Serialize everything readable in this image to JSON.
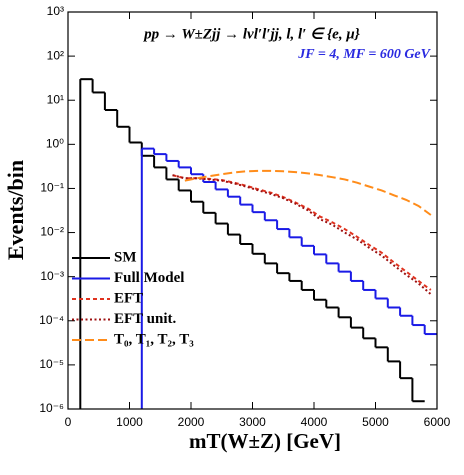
{
  "chart_data": {
    "type": "histogram",
    "title": "pp → W±Zjj → lνl′l′jj, l, l′ ∈ {e, μ}",
    "subtitle": "JF = 4, MF = 600 GeV",
    "x_label": "mT(W±Z) [GeV]",
    "y_label": "Events/bin",
    "bins": [
      200,
      400,
      600,
      800,
      1000,
      1200,
      1400,
      1600,
      1800,
      2000,
      2200,
      2400,
      2600,
      2800,
      3000,
      3200,
      3400,
      3600,
      3800,
      4000,
      4200,
      4400,
      4600,
      4800,
      5000,
      5200,
      5400,
      5600,
      5800,
      6000
    ],
    "series": [
      {
        "name": "SM",
        "color": "#000000",
        "drawstyle": "steps",
        "dash": "none",
        "values": [
          30,
          15,
          6,
          2.5,
          1.1,
          0.55,
          0.3,
          0.16,
          0.09,
          0.05,
          0.028,
          0.016,
          0.009,
          0.0055,
          0.0033,
          0.002,
          0.0012,
          0.0008,
          0.0005,
          0.0003,
          0.0002,
          0.00012,
          7e-05,
          4e-05,
          2.5e-05,
          1.2e-05,
          5e-06,
          1.5e-06,
          null
        ]
      },
      {
        "name": "Full Model",
        "color": "#1a1ae6",
        "drawstyle": "steps",
        "dash": "none",
        "values": [
          null,
          null,
          null,
          null,
          null,
          0.8,
          0.6,
          0.42,
          0.3,
          0.21,
          0.14,
          0.095,
          0.065,
          0.043,
          0.029,
          0.019,
          0.012,
          0.0078,
          0.005,
          0.0032,
          0.002,
          0.0013,
          0.0008,
          0.0005,
          0.00032,
          0.0002,
          0.00013,
          8e-05,
          5e-05
        ]
      },
      {
        "name": "EFT",
        "color": "#e0321e",
        "drawstyle": "line",
        "dash": "4 3",
        "values": [
          null,
          null,
          null,
          null,
          null,
          null,
          null,
          0.2,
          0.17,
          0.17,
          0.165,
          0.155,
          0.135,
          0.115,
          0.095,
          0.08,
          0.064,
          0.048,
          0.035,
          0.023,
          0.017,
          0.012,
          0.008,
          0.0052,
          0.0035,
          0.0021,
          0.0013,
          0.0008,
          0.0005
        ]
      },
      {
        "name": "EFT unit.",
        "color": "#9e1010",
        "drawstyle": "line",
        "dash": "2 2.5",
        "values": [
          null,
          null,
          null,
          null,
          null,
          null,
          null,
          0.2,
          0.17,
          0.17,
          0.16,
          0.15,
          0.13,
          0.11,
          0.09,
          0.075,
          0.06,
          0.045,
          0.032,
          0.02,
          0.015,
          0.01,
          0.007,
          0.0045,
          0.003,
          0.0018,
          0.0011,
          0.0007,
          0.0004
        ]
      },
      {
        "name": "T₀, T₁, T₂, T₃",
        "color": "#ff8c1a",
        "drawstyle": "line",
        "dash": "9 4",
        "values": [
          null,
          null,
          null,
          null,
          null,
          null,
          null,
          null,
          0.15,
          0.17,
          0.19,
          0.21,
          0.23,
          0.245,
          0.25,
          0.25,
          0.245,
          0.235,
          0.22,
          0.2,
          0.18,
          0.16,
          0.135,
          0.11,
          0.09,
          0.07,
          0.055,
          0.04,
          0.025
        ]
      }
    ],
    "xlim": [
      0,
      6000
    ],
    "xticks": [
      0,
      1000,
      2000,
      3000,
      4000,
      5000,
      6000
    ],
    "ylim": [
      1e-06,
      1000
    ],
    "yscale": "log",
    "yticks": [
      {
        "value": 1000,
        "label": "10³"
      },
      {
        "value": 100,
        "label": "10²"
      },
      {
        "value": 10,
        "label": "10¹"
      },
      {
        "value": 1,
        "label": "10⁰"
      },
      {
        "value": 0.1,
        "label": "10⁻¹"
      },
      {
        "value": 0.01,
        "label": "10⁻²"
      },
      {
        "value": 0.001,
        "label": "10⁻³"
      },
      {
        "value": 0.0001,
        "label": "10⁻⁴"
      },
      {
        "value": 1e-05,
        "label": "10⁻⁵"
      },
      {
        "value": 1e-06,
        "label": "10⁻⁶"
      }
    ],
    "legend": "lower left"
  }
}
